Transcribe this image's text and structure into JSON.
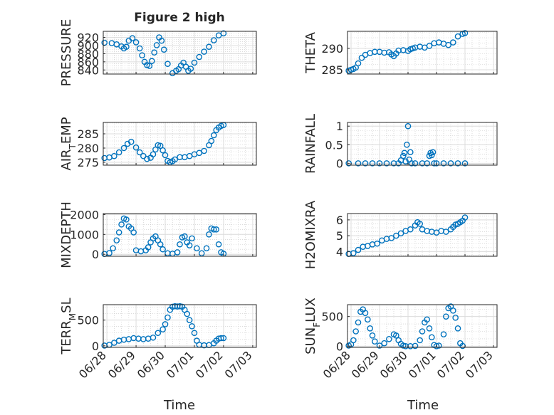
{
  "figure": {
    "title": "Figure 2 high",
    "x_dates": [
      "06/28",
      "06/29",
      "06/30",
      "07/01",
      "07/02",
      "07/03"
    ],
    "xlabel": "Time",
    "marker_color": "#0072BD"
  },
  "chart_data": [
    {
      "type": "scatter",
      "ylabel": "PRESSURE",
      "grid": true,
      "ylim": [
        830,
        935
      ],
      "yticks": [
        840,
        860,
        880,
        900,
        920
      ],
      "x": [
        "06/27 22:00",
        "06/28 04:00",
        "06/28 08:00",
        "06/28 12:00",
        "06/28 14:00",
        "06/28 16:00",
        "06/28 18:00",
        "06/28 21:00",
        "06/29 00:00",
        "06/29 03:00",
        "06/29 05:00",
        "06/29 07:00",
        "06/29 09:00",
        "06/29 11:00",
        "06/29 13:00",
        "06/29 15:00",
        "06/29 17:00",
        "06/29 19:00",
        "06/29 21:00",
        "06/29 23:00",
        "06/30 02:00",
        "06/30 06:00",
        "06/30 09:00",
        "06/30 11:00",
        "06/30 13:00",
        "06/30 15:00",
        "06/30 17:00",
        "06/30 19:00",
        "06/30 21:00",
        "07/01 00:00",
        "07/01 04:00",
        "07/01 08:00",
        "07/01 12:00",
        "07/01 16:00",
        "07/01 20:00",
        "07/02 00:00"
      ],
      "y": [
        907,
        906,
        903,
        898,
        893,
        897,
        912,
        918,
        908,
        893,
        876,
        860,
        852,
        850,
        862,
        883,
        901,
        920,
        912,
        890,
        855,
        832,
        838,
        842,
        851,
        858,
        848,
        838,
        843,
        858,
        872,
        885,
        897,
        913,
        925,
        930
      ]
    },
    {
      "type": "scatter",
      "ylabel": "THETA",
      "grid": true,
      "ylim": [
        284,
        294
      ],
      "yticks": [
        285,
        290
      ],
      "x": [
        "06/27 22:00",
        "06/28 00:00",
        "06/28 02:00",
        "06/28 04:00",
        "06/28 06:00",
        "06/28 09:00",
        "06/28 12:00",
        "06/28 16:00",
        "06/28 20:00",
        "06/29 00:00",
        "06/29 04:00",
        "06/29 08:00",
        "06/29 10:00",
        "06/29 12:00",
        "06/29 14:00",
        "06/29 16:00",
        "06/29 20:00",
        "06/30 00:00",
        "06/30 02:00",
        "06/30 04:00",
        "06/30 06:00",
        "06/30 10:00",
        "06/30 14:00",
        "06/30 18:00",
        "06/30 22:00",
        "07/01 02:00",
        "07/01 06:00",
        "07/01 10:00",
        "07/01 14:00",
        "07/01 18:00",
        "07/01 22:00",
        "07/02 00:00"
      ],
      "y": [
        284.8,
        285,
        285.2,
        285.5,
        286.5,
        287.8,
        288.5,
        288.9,
        289.2,
        289.2,
        289,
        289.1,
        288.6,
        288.2,
        288.8,
        289.5,
        289.6,
        289.4,
        289.8,
        290,
        290.2,
        290.4,
        290.2,
        290.6,
        291.2,
        291.4,
        291.1,
        290.8,
        291.4,
        292.8,
        293.4,
        293.6
      ]
    },
    {
      "type": "scatter",
      "ylabel": "AIR_TEMP",
      "grid": true,
      "ylim": [
        274,
        289
      ],
      "yticks": [
        275,
        280,
        285
      ],
      "x": [
        "06/27 22:00",
        "06/28 02:00",
        "06/28 06:00",
        "06/28 10:00",
        "06/28 14:00",
        "06/28 17:00",
        "06/28 20:00",
        "06/29 00:00",
        "06/29 03:00",
        "06/29 06:00",
        "06/29 09:00",
        "06/29 12:00",
        "06/29 14:00",
        "06/29 16:00",
        "06/29 18:00",
        "06/29 20:00",
        "06/29 22:00",
        "06/30 00:00",
        "06/30 02:00",
        "06/30 04:00",
        "06/30 06:00",
        "06/30 08:00",
        "06/30 12:00",
        "06/30 16:00",
        "06/30 20:00",
        "07/01 00:00",
        "07/01 04:00",
        "07/01 08:00",
        "07/01 12:00",
        "07/01 14:00",
        "07/01 16:00",
        "07/01 18:00",
        "07/01 20:00",
        "07/01 22:00",
        "07/02 00:00"
      ],
      "y": [
        276.5,
        276.7,
        277.2,
        278.5,
        280,
        281.5,
        282.2,
        280.2,
        278.5,
        277.2,
        276.2,
        276.6,
        277.8,
        279.5,
        281,
        280.8,
        279.2,
        277.5,
        275.5,
        275,
        275.4,
        276,
        276.8,
        276.8,
        277.2,
        277.8,
        278.3,
        279,
        281,
        282.5,
        284.5,
        286.3,
        287.2,
        287.8,
        288.1
      ]
    },
    {
      "type": "scatter",
      "ylabel": "RAINFALL",
      "grid": true,
      "ylim": [
        -0.05,
        1.1
      ],
      "yticks": [
        0,
        0.5,
        1
      ],
      "x": [
        "06/27 22:00",
        "06/28 06:00",
        "06/28 12:00",
        "06/28 18:00",
        "06/29 00:00",
        "06/29 06:00",
        "06/29 12:00",
        "06/29 16:00",
        "06/29 18:00",
        "06/29 20:00",
        "06/29 21:00",
        "06/29 22:00",
        "06/29 23:00",
        "06/30 00:00",
        "06/30 01:00",
        "06/30 02:00",
        "06/30 03:00",
        "06/30 06:00",
        "06/30 12:00",
        "06/30 16:00",
        "06/30 18:00",
        "06/30 19:00",
        "06/30 20:00",
        "06/30 21:00",
        "06/30 22:00",
        "07/01 00:00",
        "07/01 06:00",
        "07/01 12:00",
        "07/01 18:00",
        "07/02 00:00"
      ],
      "y": [
        0,
        0,
        0,
        0,
        0,
        0,
        0,
        0,
        0.08,
        0.2,
        0.28,
        0.05,
        0.5,
        1.0,
        0.1,
        0.3,
        0.0,
        0,
        0,
        0,
        0.2,
        0.28,
        0.22,
        0.3,
        0,
        0,
        0,
        0,
        0,
        0
      ]
    },
    {
      "type": "scatter",
      "ylabel": "MIXDEPTH",
      "grid": true,
      "ylim": [
        -100,
        2050
      ],
      "yticks": [
        0,
        1000,
        2000
      ],
      "x": [
        "06/27 22:00",
        "06/28 02:00",
        "06/28 05:00",
        "06/28 08:00",
        "06/28 10:00",
        "06/28 12:00",
        "06/28 14:00",
        "06/28 16:00",
        "06/28 18:00",
        "06/28 20:00",
        "06/28 22:00",
        "06/29 00:00",
        "06/29 04:00",
        "06/29 08:00",
        "06/29 10:00",
        "06/29 12:00",
        "06/29 14:00",
        "06/29 16:00",
        "06/29 18:00",
        "06/29 20:00",
        "06/29 22:00",
        "06/30 02:00",
        "06/30 06:00",
        "06/30 10:00",
        "06/30 12:00",
        "06/30 14:00",
        "06/30 16:00",
        "06/30 18:00",
        "06/30 20:00",
        "06/30 22:00",
        "07/01 02:00",
        "07/01 06:00",
        "07/01 10:00",
        "07/01 12:00",
        "07/01 14:00",
        "07/01 16:00",
        "07/01 18:00",
        "07/01 20:00",
        "07/01 22:00",
        "07/02 00:00"
      ],
      "y": [
        20,
        60,
        300,
        700,
        1100,
        1500,
        1800,
        1750,
        1400,
        1300,
        1100,
        200,
        150,
        200,
        350,
        600,
        800,
        900,
        700,
        500,
        250,
        50,
        30,
        100,
        500,
        850,
        900,
        600,
        450,
        800,
        300,
        50,
        300,
        1000,
        1300,
        1250,
        1250,
        500,
        100,
        30
      ]
    },
    {
      "type": "scatter",
      "ylabel": "H2OMIXRA",
      "grid": true,
      "ylim": [
        3.7,
        6.4
      ],
      "yticks": [
        4,
        5,
        6
      ],
      "x": [
        "06/27 22:00",
        "06/28 02:00",
        "06/28 06:00",
        "06/28 10:00",
        "06/28 14:00",
        "06/28 18:00",
        "06/28 22:00",
        "06/29 02:00",
        "06/29 06:00",
        "06/29 10:00",
        "06/29 14:00",
        "06/29 18:00",
        "06/29 22:00",
        "06/30 02:00",
        "06/30 06:00",
        "06/30 08:00",
        "06/30 10:00",
        "06/30 12:00",
        "06/30 16:00",
        "06/30 20:00",
        "07/01 00:00",
        "07/01 04:00",
        "07/01 08:00",
        "07/01 12:00",
        "07/01 14:00",
        "07/01 16:00",
        "07/01 18:00",
        "07/01 20:00",
        "07/01 22:00",
        "07/02 00:00"
      ],
      "y": [
        3.85,
        3.9,
        4.1,
        4.3,
        4.35,
        4.45,
        4.5,
        4.7,
        4.8,
        4.85,
        5.0,
        5.15,
        5.3,
        5.4,
        5.65,
        5.85,
        5.75,
        5.4,
        5.3,
        5.25,
        5.2,
        5.3,
        5.25,
        5.4,
        5.55,
        5.7,
        5.75,
        5.85,
        5.95,
        6.15
      ]
    },
    {
      "type": "scatter",
      "ylabel": "TERR_MSL",
      "grid": true,
      "ylim": [
        -30,
        800
      ],
      "yticks": [
        0,
        500
      ],
      "x": [
        "06/27 22:00",
        "06/28 02:00",
        "06/28 06:00",
        "06/28 10:00",
        "06/28 14:00",
        "06/28 18:00",
        "06/28 22:00",
        "06/29 02:00",
        "06/29 06:00",
        "06/29 10:00",
        "06/29 14:00",
        "06/29 18:00",
        "06/29 22:00",
        "06/30 00:00",
        "06/30 02:00",
        "06/30 04:00",
        "06/30 06:00",
        "06/30 08:00",
        "06/30 10:00",
        "06/30 12:00",
        "06/30 14:00",
        "06/30 16:00",
        "06/30 18:00",
        "06/30 20:00",
        "06/30 22:00",
        "07/01 00:00",
        "07/01 02:00",
        "07/01 04:00",
        "07/01 08:00",
        "07/01 12:00",
        "07/01 16:00",
        "07/01 18:00",
        "07/01 20:00",
        "07/01 22:00",
        "07/02 00:00"
      ],
      "y": [
        5,
        20,
        60,
        100,
        120,
        130,
        150,
        140,
        130,
        140,
        160,
        250,
        320,
        420,
        550,
        700,
        760,
        770,
        765,
        770,
        760,
        700,
        620,
        500,
        380,
        250,
        100,
        20,
        10,
        15,
        50,
        100,
        140,
        150,
        150
      ]
    },
    {
      "type": "scatter",
      "ylabel": "SUN_FLUX",
      "grid": true,
      "ylim": [
        -20,
        700
      ],
      "yticks": [
        0,
        500
      ],
      "x": [
        "06/27 22:00",
        "06/28 00:00",
        "06/28 02:00",
        "06/28 04:00",
        "06/28 06:00",
        "06/28 08:00",
        "06/28 10:00",
        "06/28 12:00",
        "06/28 14:00",
        "06/28 16:00",
        "06/28 18:00",
        "06/28 20:00",
        "06/29 00:00",
        "06/29 04:00",
        "06/29 08:00",
        "06/29 12:00",
        "06/29 14:00",
        "06/29 16:00",
        "06/29 18:00",
        "06/29 20:00",
        "06/29 22:00",
        "06/30 02:00",
        "06/30 06:00",
        "06/30 10:00",
        "06/30 12:00",
        "06/30 14:00",
        "06/30 16:00",
        "06/30 18:00",
        "06/30 20:00",
        "06/30 22:00",
        "07/01 00:00",
        "07/01 02:00",
        "07/01 06:00",
        "07/01 08:00",
        "07/01 10:00",
        "07/01 12:00",
        "07/01 14:00",
        "07/01 16:00",
        "07/01 18:00",
        "07/01 20:00",
        "07/01 22:00"
      ],
      "y": [
        10,
        30,
        100,
        250,
        400,
        580,
        620,
        560,
        450,
        300,
        180,
        80,
        10,
        50,
        120,
        200,
        180,
        100,
        40,
        10,
        0,
        0,
        5,
        100,
        250,
        400,
        450,
        300,
        150,
        20,
        0,
        10,
        200,
        500,
        640,
        670,
        600,
        480,
        300,
        50,
        5
      ]
    }
  ]
}
